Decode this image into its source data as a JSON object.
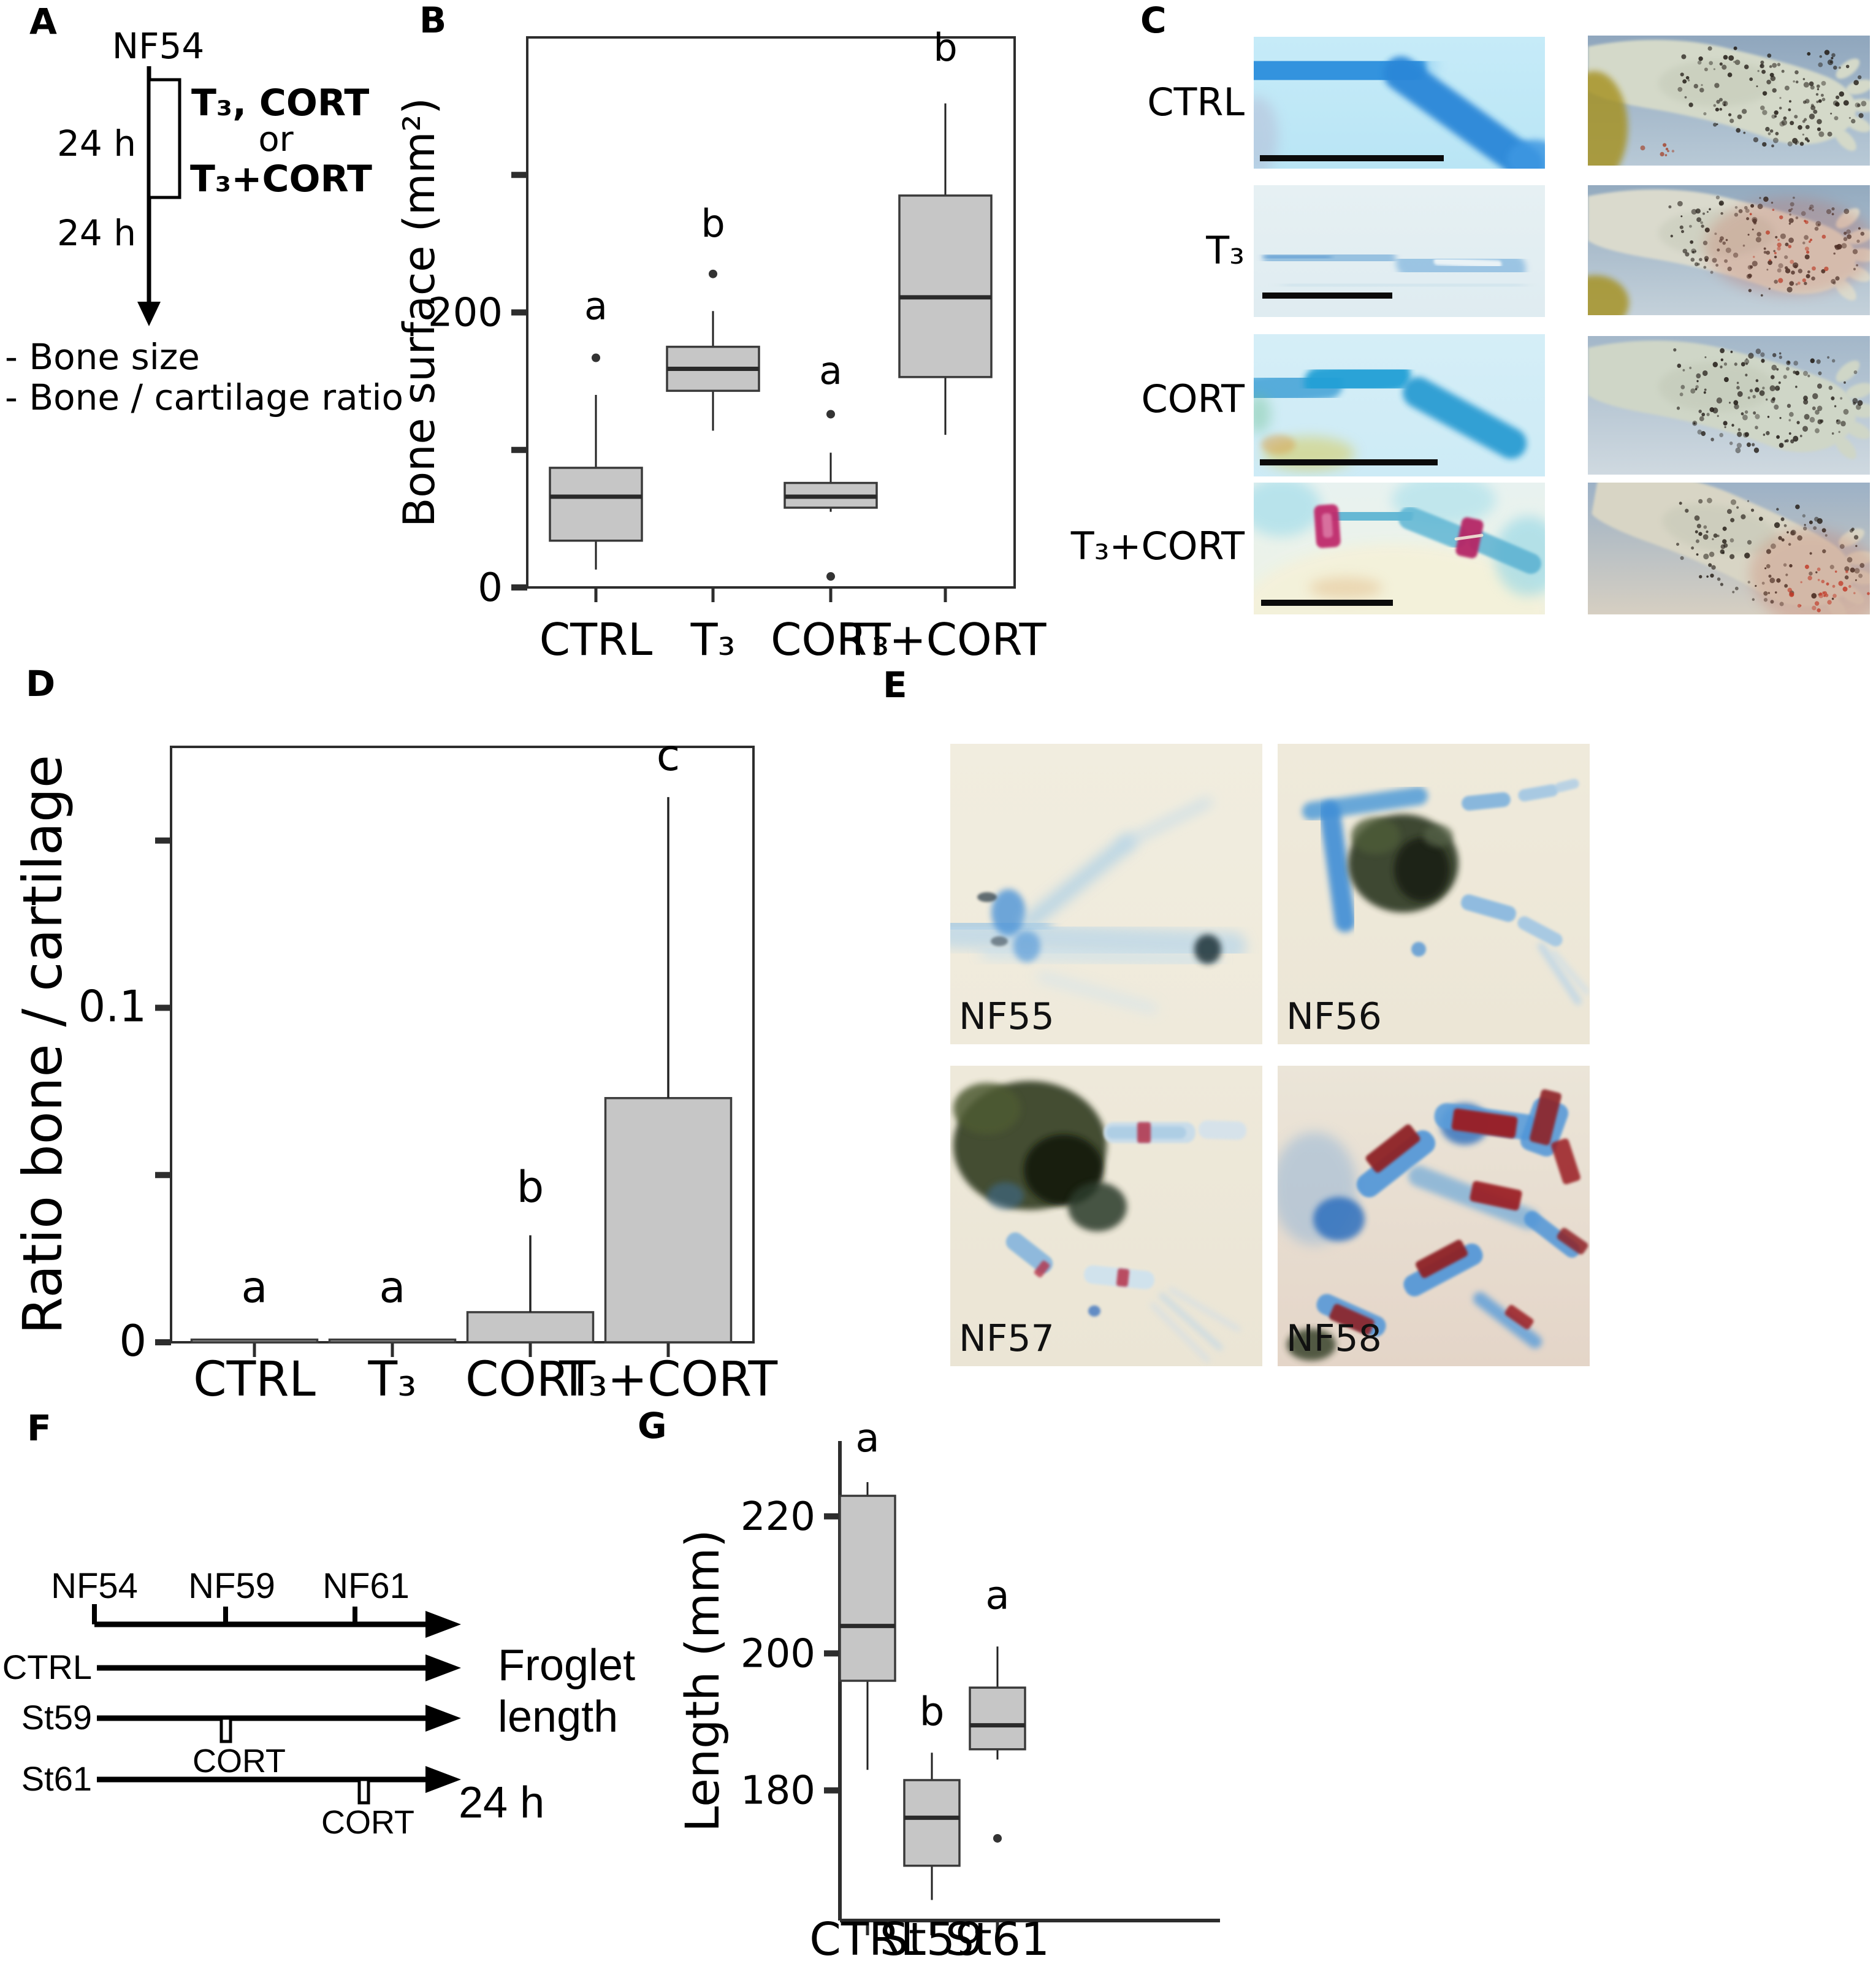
{
  "panels": {
    "a": {
      "label": "A",
      "stage": "NF54",
      "duration_top": "24 h",
      "duration_bottom": "24 h",
      "treatment_option1": "T₃, CORT",
      "or_text": "or",
      "treatment_option2": "T₃+CORT",
      "outcome1": "- Bone size",
      "outcome2": "- Bone / cartilage ratio"
    },
    "b": {
      "label": "B"
    },
    "c": {
      "label": "C",
      "rows": [
        {
          "label": "CTRL"
        },
        {
          "label": "T₃"
        },
        {
          "label": "CORT"
        },
        {
          "label": "T₃+CORT"
        }
      ]
    },
    "d": {
      "label": "D"
    },
    "e": {
      "label": "E",
      "images": [
        {
          "label": "NF55"
        },
        {
          "label": "NF56"
        },
        {
          "label": "NF57"
        },
        {
          "label": "NF58"
        }
      ]
    },
    "f": {
      "label": "F",
      "stages": [
        "NF54",
        "NF59",
        "NF61"
      ],
      "conditions": [
        "CTRL",
        "St59",
        "St61"
      ],
      "cort1": "CORT",
      "cort2": "CORT",
      "outcome_line1": "Froglet",
      "outcome_line2": "length",
      "duration": "24 h"
    },
    "g": {
      "label": "G"
    }
  },
  "colors": {
    "box_fill": "#c6c6c6",
    "box_stroke": "#3a3a3a",
    "median": "#2a2a2a",
    "axis": "#2d2d2d",
    "cartilage_blue": "#2e8fd8",
    "bone_red": "#9a1b22",
    "magenta_stain": "#bb2a68"
  },
  "chart_data": [
    {
      "panel": "B",
      "type": "boxplot",
      "title": "",
      "ylabel": "Bone surface (mm²)",
      "xlabel": "",
      "categories": [
        "CTRL",
        "T₃",
        "CORT",
        "T₃+CORT"
      ],
      "ylim": [
        0,
        400
      ],
      "yticks": [
        0,
        100,
        200,
        300
      ],
      "ytick_labels": [
        "0",
        "",
        "200",
        ""
      ],
      "grid": false,
      "legend": null,
      "boxes": [
        {
          "whisker_low": 13,
          "q1": 34,
          "median": 66,
          "q3": 87,
          "whisker_high": 140,
          "outliers": [
            167
          ],
          "sig": "a",
          "sig_y": 195
        },
        {
          "whisker_low": 114,
          "q1": 143,
          "median": 159,
          "q3": 175,
          "whisker_high": 201,
          "outliers": [
            228
          ],
          "sig": "b",
          "sig_y": 255
        },
        {
          "whisker_low": 55,
          "q1": 58,
          "median": 66,
          "q3": 76,
          "whisker_high": 98,
          "outliers": [
            126,
            8
          ],
          "sig": "a",
          "sig_y": 148
        },
        {
          "whisker_low": 111,
          "q1": 153,
          "median": 211,
          "q3": 285,
          "whisker_high": 352,
          "outliers": [],
          "sig": "b",
          "sig_y": 383
        }
      ]
    },
    {
      "panel": "D",
      "type": "bar",
      "title": "",
      "ylabel": "Ratio bone / cartilage",
      "xlabel": "",
      "categories": [
        "CTRL",
        "T₃",
        "CORT",
        "T₃+CORT"
      ],
      "ylim": [
        0,
        0.178
      ],
      "yticks": [
        0,
        0.05,
        0.1,
        0.15
      ],
      "ytick_labels": [
        "0",
        "",
        "0.1",
        ""
      ],
      "grid": false,
      "legend": null,
      "values": [
        0.0008,
        0.0008,
        0.009,
        0.073
      ],
      "error_high": [
        null,
        null,
        0.032,
        0.163
      ],
      "sig": [
        "a",
        "a",
        "b",
        "c"
      ],
      "sig_y": [
        0.012,
        0.012,
        0.042,
        0.171
      ]
    },
    {
      "panel": "G",
      "type": "boxplot",
      "title": "",
      "ylabel": "Length (mm)",
      "xlabel": "",
      "categories": [
        "CTRL",
        "St59",
        "St61"
      ],
      "ylim": [
        161,
        231
      ],
      "yticks": [
        180,
        200,
        220
      ],
      "ytick_labels": [
        "180",
        "200",
        "220"
      ],
      "grid": false,
      "legend": null,
      "boxes": [
        {
          "whisker_low": 183,
          "q1": 196,
          "median": 204,
          "q3": 223,
          "whisker_high": 225,
          "outliers": [],
          "sig": "a",
          "sig_y": 229.5
        },
        {
          "whisker_low": 164,
          "q1": 169,
          "median": 176,
          "q3": 181.5,
          "whisker_high": 185.5,
          "outliers": [],
          "sig": "b",
          "sig_y": 189.5
        },
        {
          "whisker_low": 184.5,
          "q1": 186,
          "median": 189.5,
          "q3": 195,
          "whisker_high": 201,
          "outliers": [
            173
          ],
          "sig": "a",
          "sig_y": 206.5
        }
      ]
    }
  ]
}
